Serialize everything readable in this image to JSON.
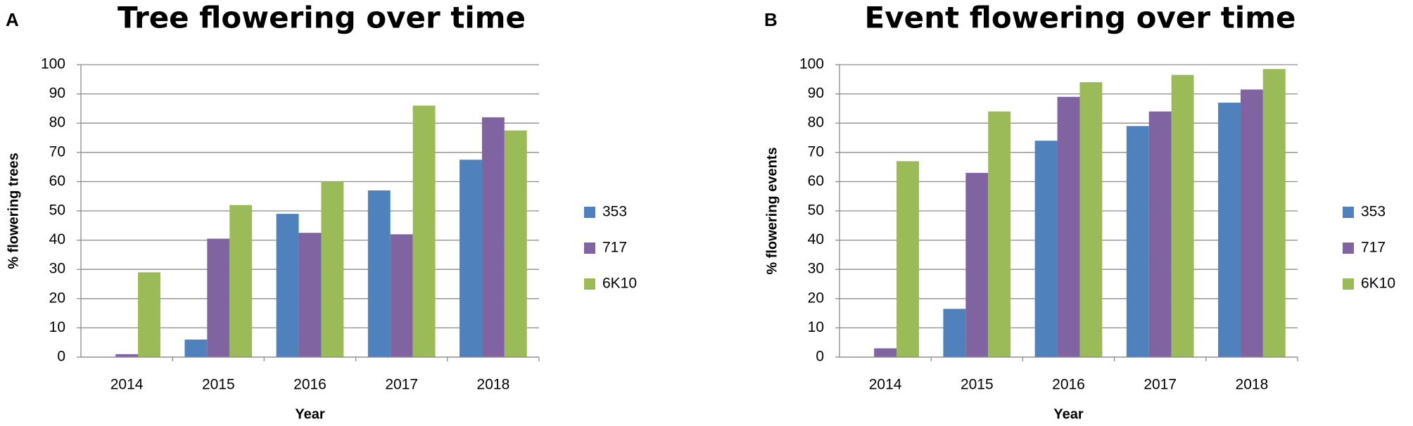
{
  "chart_data": [
    {
      "type": "bar",
      "panel": "A",
      "title": "Tree flowering over time",
      "x_label": "Year",
      "y_label": "% flowering trees",
      "categories": [
        "2014",
        "2015",
        "2016",
        "2017",
        "2018"
      ],
      "series": [
        {
          "name": "353",
          "color": "#4f81bd",
          "values": [
            0,
            6,
            49,
            57,
            67.5
          ]
        },
        {
          "name": "717",
          "color": "#8064a2",
          "values": [
            1,
            40.5,
            42.5,
            42,
            82
          ]
        },
        {
          "name": "6K10",
          "color": "#9bbb59",
          "values": [
            29,
            52,
            60,
            86,
            77.5
          ]
        }
      ],
      "ylim": [
        0,
        100
      ],
      "yticks": [
        0,
        10,
        20,
        30,
        40,
        50,
        60,
        70,
        80,
        90,
        100
      ],
      "grid": true,
      "legend": "right"
    },
    {
      "type": "bar",
      "panel": "B",
      "title": "Event flowering over time",
      "x_label": "Year",
      "y_label": "% flowering events",
      "categories": [
        "2014",
        "2015",
        "2016",
        "2017",
        "2018"
      ],
      "series": [
        {
          "name": "353",
          "color": "#4f81bd",
          "values": [
            0,
            16.5,
            74,
            79,
            87
          ]
        },
        {
          "name": "717",
          "color": "#8064a2",
          "values": [
            3,
            63,
            89,
            84,
            91.5
          ]
        },
        {
          "name": "6K10",
          "color": "#9bbb59",
          "values": [
            67,
            84,
            94,
            96.5,
            98.5
          ]
        }
      ],
      "ylim": [
        0,
        100
      ],
      "yticks": [
        0,
        10,
        20,
        30,
        40,
        50,
        60,
        70,
        80,
        90,
        100
      ],
      "grid": true,
      "legend": "right"
    }
  ]
}
